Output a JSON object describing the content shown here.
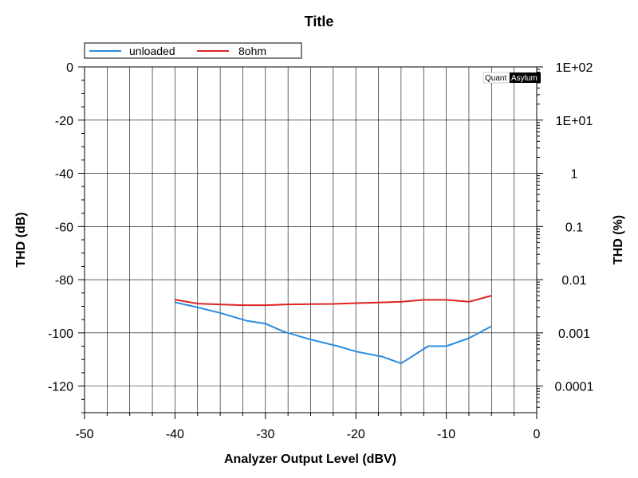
{
  "chart_data": {
    "type": "line",
    "title": "Title",
    "xlabel": "Analyzer Output Level (dBV)",
    "ylabel": "THD (dB)",
    "y2label": "THD (%)",
    "xlim": [
      -50,
      0
    ],
    "ylim": [
      -130,
      0
    ],
    "x_ticks": [
      -50,
      -40,
      -30,
      -20,
      -10,
      0
    ],
    "x_tick_labels": [
      "-50",
      "-40",
      "-30",
      "-20",
      "-10",
      "0"
    ],
    "y_ticks": [
      0,
      -20,
      -40,
      -60,
      -80,
      -100,
      -120
    ],
    "y_tick_labels": [
      "0",
      "-20",
      "-40",
      "-60",
      "-80",
      "-100",
      "-120"
    ],
    "y2_ticks_db": [
      0,
      -20,
      -40,
      -60,
      -80,
      -100,
      -120
    ],
    "y2_tick_labels": [
      "1E+02",
      "1E+01",
      "1",
      "0.1",
      "0.01",
      "0.001",
      "0.0001"
    ],
    "grid": true,
    "legend_position": "top-left",
    "series": [
      {
        "name": "unloaded",
        "color": "#2a8be0",
        "x": [
          -40,
          -38,
          -35,
          -32,
          -30,
          -28,
          -25,
          -22,
          -20,
          -17,
          -15,
          -12,
          -10,
          -7.5,
          -5
        ],
        "y": [
          -88.5,
          -90,
          -92.5,
          -95.5,
          -96.5,
          -99.5,
          -102.5,
          -105,
          -107,
          -109,
          -111.5,
          -105,
          -105,
          -102,
          -97.5
        ]
      },
      {
        "name": "8ohm",
        "color": "#dd2222",
        "x": [
          -40,
          -37.5,
          -35,
          -32.5,
          -30,
          -27.5,
          -25,
          -22.5,
          -20,
          -17.5,
          -15,
          -12.5,
          -10,
          -7.5,
          -5
        ],
        "y": [
          -87.5,
          -89,
          -89.3,
          -89.6,
          -89.6,
          -89.3,
          -89.2,
          -89.1,
          -88.8,
          -88.6,
          -88.3,
          -87.6,
          -87.6,
          -88.3,
          -86
        ]
      }
    ]
  },
  "watermark": {
    "left": "Quant",
    "right": "Asylum"
  }
}
